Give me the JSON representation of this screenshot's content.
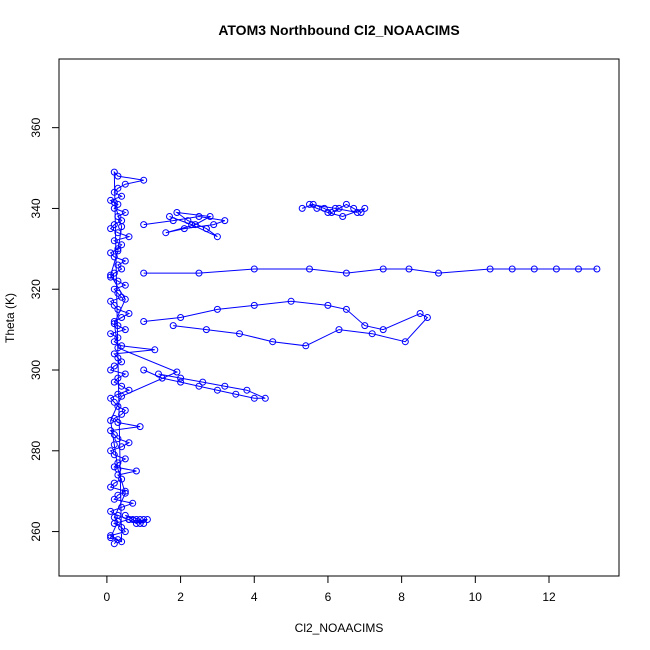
{
  "chart_data": {
    "type": "scatter",
    "style": "lines-and-points",
    "title": "ATOM3 Northbound Cl2_NOAACIMS",
    "xlabel": "Cl2_NOAACIMS",
    "ylabel": "Theta (K)",
    "xlim": [
      -1.3,
      13.9
    ],
    "ylim": [
      249,
      377
    ],
    "x_ticks": [
      0,
      2,
      4,
      6,
      8,
      10,
      12
    ],
    "y_ticks": [
      260,
      280,
      300,
      320,
      340,
      360
    ],
    "grid": false,
    "legend": "none",
    "marker": "open-circle",
    "color": "#0000ff",
    "series": [
      {
        "x": [
          0.2,
          0.3,
          0.1,
          0.5,
          0.4,
          0.2,
          0.6,
          0.3,
          0.1,
          0.4,
          0.7,
          0.2,
          0.3,
          0.5,
          0.1,
          0.2,
          0.4,
          0.3,
          0.8,
          0.2,
          0.3,
          0.5,
          0.2,
          0.1,
          0.4,
          0.6,
          0.3,
          0.2,
          0.1,
          0.9,
          0.3,
          0.2,
          0.4,
          0.5,
          0.3,
          0.2,
          0.1,
          0.3,
          0.6,
          0.4,
          0.2,
          0.3,
          0.5,
          0.1,
          0.2,
          0.4,
          0.3,
          0.2,
          1.3,
          0.4,
          0.2,
          0.3,
          0.1,
          0.5,
          0.3,
          0.2,
          0.4,
          0.6,
          0.3,
          0.2,
          0.1,
          0.4,
          0.3,
          0.2,
          0.5,
          0.3,
          0.1,
          0.2,
          0.4,
          0.3,
          0.5,
          0.2,
          0.1,
          0.3,
          0.4,
          0.2,
          0.6,
          0.3,
          0.1,
          0.2,
          0.4,
          0.3,
          0.5,
          0.2,
          0.3,
          0.1,
          0.4,
          0.2,
          0.3,
          0.5,
          1.0,
          0.3,
          0.2,
          0.4,
          0.1,
          0.3,
          0.2,
          0.5,
          0.3,
          0.2,
          0.1,
          0.4,
          1.9,
          0.3,
          0.2,
          0.5,
          0.1,
          0.3,
          0.4,
          0.2
        ],
        "y": [
          257,
          258,
          259,
          260,
          261,
          262,
          263,
          264,
          265,
          266,
          267,
          268,
          269,
          270,
          271,
          272,
          273,
          274,
          275,
          276,
          277,
          278,
          279,
          280,
          281,
          282,
          283,
          284,
          285,
          286,
          287,
          288,
          289,
          290,
          291,
          292,
          293,
          294,
          295,
          296,
          297,
          298,
          299,
          300,
          301,
          302,
          303,
          304,
          305,
          306,
          307,
          308,
          309,
          310,
          311,
          312,
          313,
          314,
          315,
          316,
          317,
          318,
          319,
          320,
          321,
          322,
          323,
          324,
          325,
          326,
          327,
          328,
          329,
          330,
          331,
          332,
          333,
          334,
          335,
          336,
          337,
          338,
          339,
          340,
          341,
          342,
          343,
          344,
          345,
          346,
          347,
          348,
          349,
          257.5,
          258.5,
          262.5,
          263.5,
          269.5,
          275.5,
          281.5,
          287.5,
          293.5,
          299.5,
          305.5,
          311.5,
          317.5,
          323.5,
          329.5,
          335.5,
          341.5
        ]
      },
      {
        "x": [
          1.0,
          1.8,
          2.5,
          3.2,
          2.9,
          2.1,
          1.6,
          2.4,
          2.8,
          1.9,
          2.2,
          2.7,
          3.0,
          2.3,
          1.7
        ],
        "y": [
          336,
          337,
          338,
          337,
          336,
          335,
          334,
          336,
          338,
          339,
          337,
          335,
          333,
          336,
          338
        ]
      },
      {
        "x": [
          5.3,
          5.6,
          5.9,
          6.1,
          6.3,
          6.5,
          6.7,
          6.9,
          7.0,
          6.4,
          6.0,
          5.7,
          5.5,
          6.2,
          6.8
        ],
        "y": [
          340,
          341,
          340,
          339,
          340,
          341,
          340,
          339,
          340,
          338,
          339,
          340,
          341,
          340,
          339
        ]
      },
      {
        "x": [
          1.0,
          2.5,
          4.0,
          5.5,
          6.5,
          7.5,
          8.2,
          9.0,
          10.4,
          11.0,
          11.6,
          12.2,
          12.8,
          13.3
        ],
        "y": [
          324,
          324,
          325,
          325,
          324,
          325,
          325,
          324,
          325,
          325,
          325,
          325,
          325,
          325
        ]
      },
      {
        "x": [
          1.0,
          2.0,
          3.0,
          4.0,
          5.0,
          6.0,
          6.5,
          7.0,
          7.5,
          8.5,
          8.7,
          8.1,
          7.2,
          6.3,
          5.4,
          4.5,
          3.6,
          2.7,
          1.8
        ],
        "y": [
          312,
          313,
          315,
          316,
          317,
          316,
          315,
          311,
          310,
          314,
          313,
          307,
          309,
          310,
          306,
          307,
          309,
          310,
          311
        ]
      },
      {
        "x": [
          1.0,
          1.5,
          2.0,
          2.5,
          3.0,
          3.5,
          4.0,
          4.3,
          3.8,
          3.2,
          2.6,
          2.0,
          1.4
        ],
        "y": [
          300,
          298,
          297,
          296,
          295,
          294,
          293,
          293,
          295,
          296,
          297,
          298,
          299
        ]
      },
      {
        "x": [
          0.6,
          0.8,
          1.0,
          1.1,
          0.9,
          0.7,
          0.5,
          0.9,
          1.0,
          0.8
        ],
        "y": [
          263,
          262,
          263,
          263,
          262,
          263,
          264,
          263,
          262,
          263
        ]
      }
    ]
  }
}
